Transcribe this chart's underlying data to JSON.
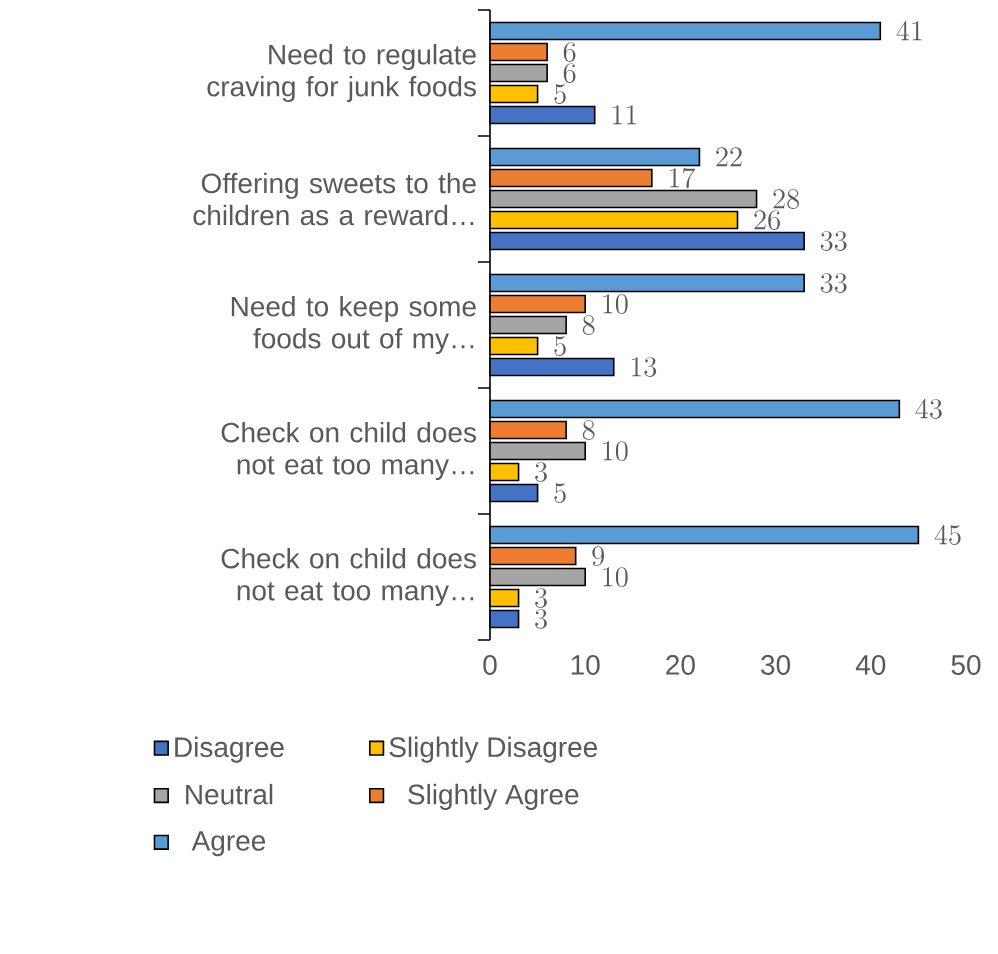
{
  "chart_data": {
    "type": "bar",
    "orientation": "horizontal",
    "categories": [
      "Need to regulate craving for junk foods",
      "Offering sweets to the children as a reward…",
      "Need to keep some foods out of my…",
      "Check on child does not eat too many…",
      "Check on child does not eat too many…"
    ],
    "series": [
      {
        "name": "Disagree",
        "color": "#4472c4",
        "values": [
          11,
          33,
          13,
          5,
          3
        ]
      },
      {
        "name": "Slightly Disagree",
        "color": "#ffc000",
        "values": [
          5,
          26,
          5,
          3,
          3
        ]
      },
      {
        "name": "Neutral",
        "color": "#a5a5a5",
        "values": [
          6,
          28,
          8,
          10,
          10
        ]
      },
      {
        "name": "Slightly Agree",
        "color": "#ed7d31",
        "values": [
          6,
          17,
          10,
          8,
          9
        ]
      },
      {
        "name": "Agree",
        "color": "#5b9bd5",
        "values": [
          41,
          22,
          33,
          43,
          45
        ]
      }
    ],
    "xlim": [
      0,
      50
    ],
    "xticks": [
      0,
      10,
      20,
      30,
      40,
      50
    ],
    "data_labels": true,
    "legend": "bottom"
  }
}
